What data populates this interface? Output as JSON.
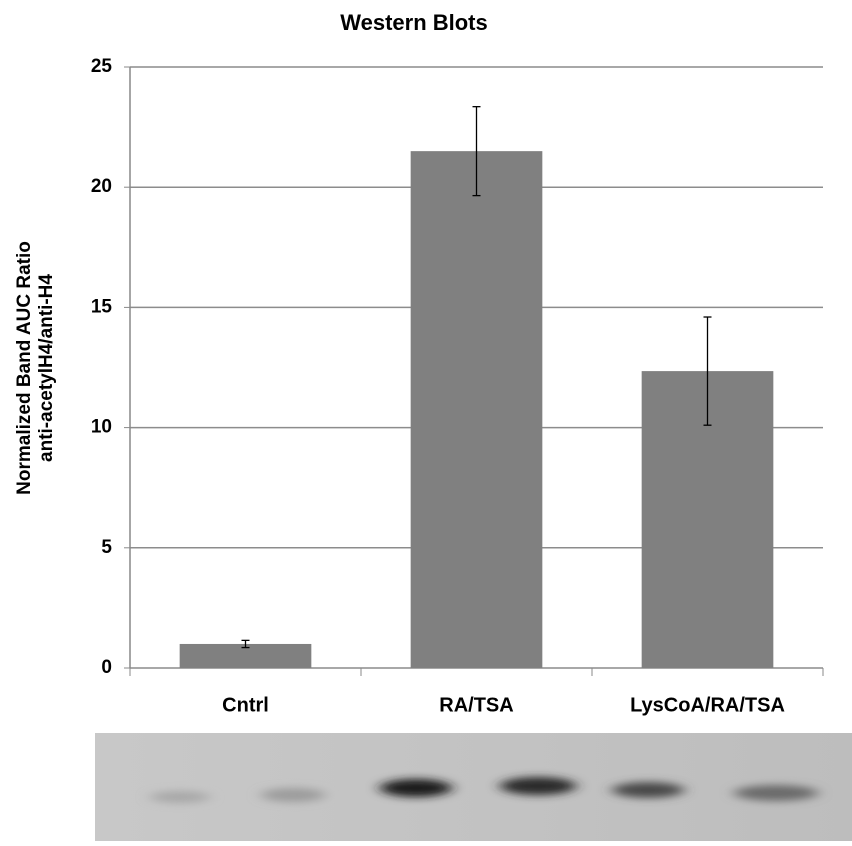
{
  "chart_data": {
    "type": "bar",
    "title": "Western Blots",
    "ylabel_lines": [
      "Normalized Band AUC Ratio",
      "anti-acetylH4/anti-H4"
    ],
    "categories": [
      "Cntrl",
      "RA/TSA",
      "LysCoA/RA/TSA"
    ],
    "values": [
      1.0,
      21.5,
      12.35
    ],
    "errors": [
      0.15,
      1.85,
      2.25
    ],
    "color": "#808080",
    "ylim": [
      0,
      25
    ],
    "yticks": [
      0,
      5,
      10,
      15,
      20,
      25
    ],
    "grid": true
  }
}
